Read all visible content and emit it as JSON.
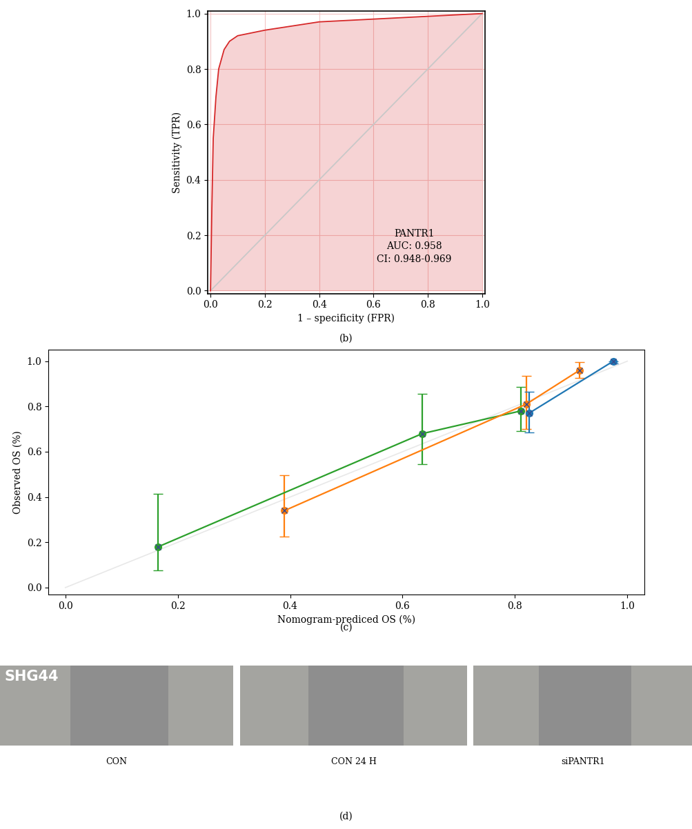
{
  "chart_data": [
    {
      "type": "line",
      "title": "(b)",
      "x_label": "1 – specificity (FPR)",
      "y_label": "Sensitivity (TPR)",
      "xlim": [
        -0.01,
        1.01
      ],
      "ylim": [
        -0.01,
        1.01
      ],
      "xticks": [
        0.0,
        0.2,
        0.4,
        0.6,
        0.8,
        1.0
      ],
      "yticks": [
        0.0,
        0.2,
        0.4,
        0.6,
        0.8,
        1.0
      ],
      "grid": true,
      "annotations": [
        "PANTR1",
        "AUC: 0.958",
        "CI: 0.948-0.969"
      ],
      "series": [
        {
          "color": "#d62728",
          "line_style": "solid",
          "x": [
            0.0,
            0.005,
            0.01,
            0.02,
            0.03,
            0.05,
            0.07,
            0.1,
            0.15,
            0.2,
            0.3,
            0.4,
            0.5,
            0.6,
            0.8,
            1.0
          ],
          "values": [
            0.0,
            0.3,
            0.55,
            0.7,
            0.8,
            0.87,
            0.9,
            0.92,
            0.93,
            0.94,
            0.955,
            0.97,
            0.975,
            0.98,
            0.99,
            1.0
          ]
        },
        {
          "color": "#c8c8c8",
          "line_style": "solid",
          "x": [
            0.0,
            1.0
          ],
          "values": [
            0.0,
            1.0
          ]
        }
      ]
    },
    {
      "type": "scatter",
      "title": "(c)",
      "x_label": "Nomogram-prediced OS (%)",
      "y_label": "Observed OS (%)",
      "xlim": [
        -0.03,
        1.03
      ],
      "ylim": [
        -0.03,
        1.05
      ],
      "xticks": [
        0.0,
        0.2,
        0.4,
        0.6,
        0.8,
        1.0
      ],
      "yticks": [
        0.0,
        0.2,
        0.4,
        0.6,
        0.8,
        1.0
      ],
      "grid": false,
      "series": [
        {
          "color": "#e8e8e8",
          "type": "line",
          "line_style": "solid",
          "x": [
            0.0,
            1.0
          ],
          "values": [
            0.0,
            1.0
          ]
        },
        {
          "color": "#2ca02c",
          "marker": "o",
          "line_style": "solid",
          "x": [
            0.165,
            0.635,
            0.81
          ],
          "values": [
            0.18,
            0.68,
            0.78
          ],
          "lower": [
            0.075,
            0.545,
            0.69
          ],
          "upper": [
            0.415,
            0.855,
            0.885
          ]
        },
        {
          "color": "#ff7f0e",
          "marker": "o",
          "line_style": "solid",
          "x": [
            0.39,
            0.82,
            0.915
          ],
          "values": [
            0.34,
            0.81,
            0.96
          ],
          "lower": [
            0.225,
            0.7,
            0.925
          ],
          "upper": [
            0.495,
            0.935,
            0.995
          ]
        },
        {
          "color": "#1f77b4",
          "marker": "o",
          "line_style": "solid",
          "x": [
            0.825,
            0.975
          ],
          "values": [
            0.77,
            1.0
          ],
          "lower": [
            0.685,
            0.99
          ],
          "upper": [
            0.865,
            1.0
          ]
        }
      ]
    },
    {
      "type": "image",
      "title": "(d)",
      "panels": [
        "CON",
        "CON 24 H",
        "siPANTR1"
      ],
      "annotations": [
        "SHG44"
      ]
    }
  ]
}
